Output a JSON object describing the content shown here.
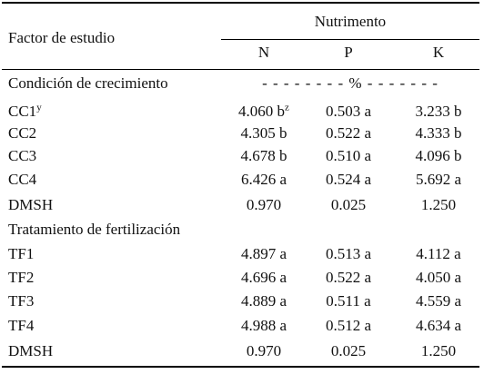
{
  "header": {
    "factor_label": "Factor de estudio",
    "group_label": "Nutrimento",
    "columns": [
      "N",
      "P",
      "K"
    ]
  },
  "section1": {
    "title": "Condición de crecimiento",
    "unit_marker": "- - - - - - - - % - - - - - - -",
    "rows": [
      {
        "label": "CC1",
        "label_sup": "y",
        "n": "4.060 b",
        "n_sup": "z",
        "p": "0.503 a",
        "k": "3.233 b"
      },
      {
        "label": "CC2",
        "n": "4.305 b",
        "p": "0.522 a",
        "k": "4.333 b"
      },
      {
        "label": "CC3",
        "n": "4.678 b",
        "p": "0.510 a",
        "k": "4.096 b"
      },
      {
        "label": "CC4",
        "n": "6.426 a",
        "p": "0.524 a",
        "k": "5.692 a"
      },
      {
        "label": "DMSH",
        "n": "0.970",
        "p": "0.025",
        "k": "1.250"
      }
    ]
  },
  "section2": {
    "title": "Tratamiento de fertilización",
    "rows": [
      {
        "label": "TF1",
        "n": "4.897 a",
        "p": "0.513 a",
        "k": "4.112 a"
      },
      {
        "label": "TF2",
        "n": "4.696 a",
        "p": "0.522 a",
        "k": "4.050 a"
      },
      {
        "label": "TF3",
        "n": "4.889 a",
        "p": "0.511 a",
        "k": "4.559 a"
      },
      {
        "label": "TF4",
        "n": "4.988 a",
        "p": "0.512 a",
        "k": "4.634 a"
      },
      {
        "label": "DMSH",
        "n": "0.970",
        "p": "0.025",
        "k": "1.250"
      }
    ]
  }
}
